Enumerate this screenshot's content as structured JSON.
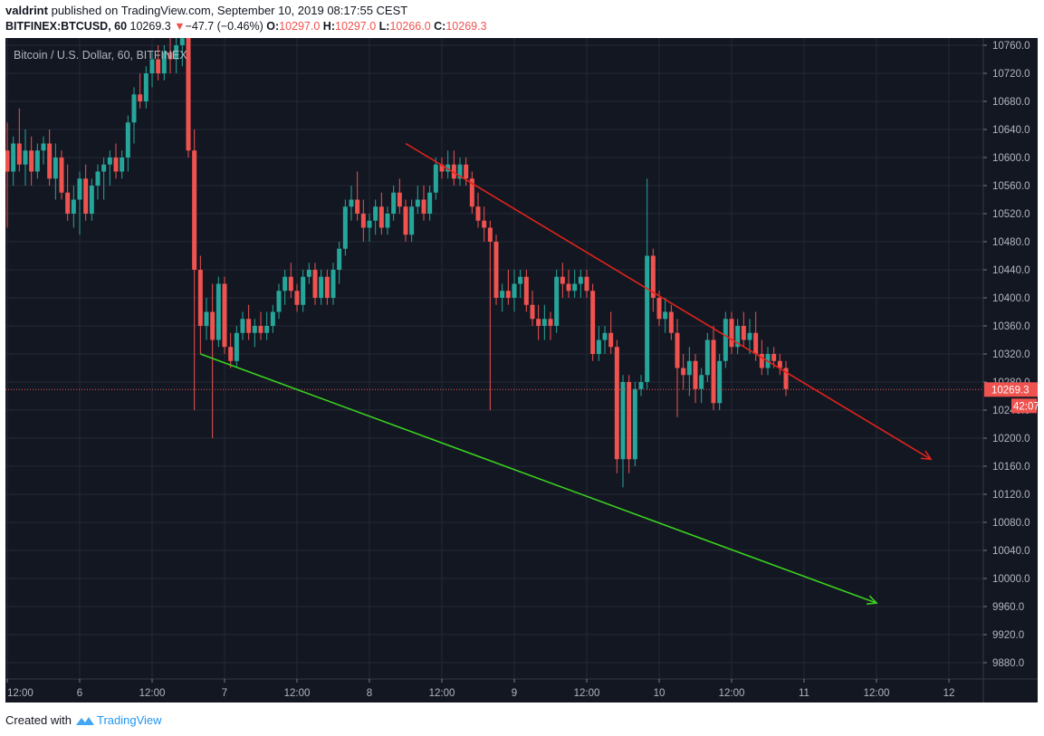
{
  "header": {
    "author": "valdrint",
    "published_text": "published on TradingView.com, September 10, 2019 08:17:55 CEST",
    "symbol": "BITFINEX:BTCUSD, 60",
    "last": "10269.3",
    "change_arrow": "▼",
    "change": "−47.7 (−0.46%)",
    "o_label": "O:",
    "o": "10297.0",
    "h_label": "H:",
    "h": "10297.0",
    "l_label": "L:",
    "l": "10266.0",
    "c_label": "C:",
    "c": "10269.3"
  },
  "footer": {
    "created_with": "Created with",
    "brand": "TradingView"
  },
  "colors": {
    "bg": "#131722",
    "up": "#26a69a",
    "down": "#ef5350",
    "grid": "#242835",
    "red_line": "#e0231c",
    "green_line": "#3ad11f",
    "text": "#b2b5be"
  },
  "chart_data": {
    "type": "candlestick",
    "title": "Bitcoin / U.S. Dollar, 60, BITFINEX",
    "xlabel": "",
    "ylabel": "",
    "ylim": [
      9840,
      10780
    ],
    "y_ticks": [
      "10760.0",
      "10720.0",
      "10680.0",
      "10640.0",
      "10600.0",
      "10560.0",
      "10520.0",
      "10480.0",
      "10440.0",
      "10400.0",
      "10360.0",
      "10320.0",
      "10280.0",
      "10240.0",
      "10200.0",
      "10160.0",
      "10120.0",
      "10080.0",
      "10040.0",
      "10000.0",
      "9960.0",
      "9920.0",
      "9880.0"
    ],
    "x_ticks": [
      "12:00",
      "6",
      "12:00",
      "7",
      "12:00",
      "8",
      "12:00",
      "9",
      "12:00",
      "10",
      "12:00",
      "11",
      "12:00",
      "12"
    ],
    "grid": true,
    "last_price_label": "10269.3",
    "countdown_label": "42:07",
    "last_price": 10269.3,
    "candles_start": "2019-09-05 12:00",
    "interval": "1h",
    "candles": [
      [
        10610,
        10650,
        10500,
        10580
      ],
      [
        10580,
        10630,
        10560,
        10620
      ],
      [
        10620,
        10670,
        10580,
        10590
      ],
      [
        10590,
        10640,
        10560,
        10610
      ],
      [
        10610,
        10630,
        10560,
        10580
      ],
      [
        10580,
        10620,
        10570,
        10610
      ],
      [
        10610,
        10630,
        10590,
        10620
      ],
      [
        10620,
        10640,
        10560,
        10570
      ],
      [
        10570,
        10620,
        10540,
        10600
      ],
      [
        10600,
        10610,
        10540,
        10550
      ],
      [
        10550,
        10590,
        10510,
        10520
      ],
      [
        10520,
        10560,
        10500,
        10540
      ],
      [
        10540,
        10580,
        10490,
        10570
      ],
      [
        10570,
        10590,
        10510,
        10520
      ],
      [
        10520,
        10570,
        10510,
        10560
      ],
      [
        10560,
        10590,
        10540,
        10580
      ],
      [
        10580,
        10600,
        10540,
        10590
      ],
      [
        10590,
        10610,
        10560,
        10600
      ],
      [
        10600,
        10620,
        10570,
        10580
      ],
      [
        10580,
        10610,
        10570,
        10600
      ],
      [
        10600,
        10660,
        10580,
        10650
      ],
      [
        10650,
        10700,
        10620,
        10690
      ],
      [
        10690,
        10720,
        10670,
        10680
      ],
      [
        10680,
        10730,
        10670,
        10720
      ],
      [
        10720,
        10750,
        10700,
        10740
      ],
      [
        10740,
        10760,
        10710,
        10720
      ],
      [
        10720,
        10760,
        10710,
        10750
      ],
      [
        10750,
        10780,
        10720,
        10740
      ],
      [
        10740,
        10780,
        10720,
        10760
      ],
      [
        10760,
        10790,
        10730,
        10770
      ],
      [
        10780,
        10780,
        10600,
        10610
      ],
      [
        10610,
        10640,
        10240,
        10440
      ],
      [
        10440,
        10460,
        10320,
        10360
      ],
      [
        10360,
        10400,
        10340,
        10380
      ],
      [
        10380,
        10420,
        10200,
        10340
      ],
      [
        10340,
        10430,
        10330,
        10420
      ],
      [
        10420,
        10430,
        10320,
        10330
      ],
      [
        10330,
        10350,
        10300,
        10310
      ],
      [
        10310,
        10360,
        10300,
        10350
      ],
      [
        10350,
        10380,
        10340,
        10370
      ],
      [
        10370,
        10390,
        10340,
        10350
      ],
      [
        10350,
        10370,
        10330,
        10360
      ],
      [
        10360,
        10380,
        10340,
        10350
      ],
      [
        10350,
        10380,
        10340,
        10360
      ],
      [
        10360,
        10390,
        10350,
        10380
      ],
      [
        10380,
        10420,
        10370,
        10410
      ],
      [
        10410,
        10440,
        10390,
        10430
      ],
      [
        10430,
        10450,
        10400,
        10410
      ],
      [
        10410,
        10420,
        10380,
        10390
      ],
      [
        10390,
        10440,
        10380,
        10430
      ],
      [
        10430,
        10450,
        10420,
        10440
      ],
      [
        10440,
        10450,
        10390,
        10400
      ],
      [
        10400,
        10440,
        10390,
        10430
      ],
      [
        10430,
        10440,
        10390,
        10400
      ],
      [
        10400,
        10450,
        10390,
        10440
      ],
      [
        10440,
        10480,
        10420,
        10470
      ],
      [
        10470,
        10540,
        10460,
        10530
      ],
      [
        10530,
        10560,
        10510,
        10540
      ],
      [
        10540,
        10580,
        10510,
        10520
      ],
      [
        10520,
        10540,
        10480,
        10500
      ],
      [
        10500,
        10520,
        10480,
        10510
      ],
      [
        10510,
        10540,
        10490,
        10530
      ],
      [
        10530,
        10550,
        10490,
        10500
      ],
      [
        10500,
        10530,
        10490,
        10520
      ],
      [
        10520,
        10560,
        10510,
        10550
      ],
      [
        10550,
        10570,
        10520,
        10530
      ],
      [
        10530,
        10540,
        10480,
        10490
      ],
      [
        10490,
        10540,
        10480,
        10530
      ],
      [
        10530,
        10560,
        10520,
        10540
      ],
      [
        10540,
        10560,
        10510,
        10520
      ],
      [
        10520,
        10560,
        10510,
        10550
      ],
      [
        10550,
        10600,
        10540,
        10590
      ],
      [
        10590,
        10600,
        10570,
        10580
      ],
      [
        10580,
        10610,
        10570,
        10590
      ],
      [
        10590,
        10610,
        10560,
        10570
      ],
      [
        10570,
        10600,
        10560,
        10590
      ],
      [
        10590,
        10600,
        10560,
        10570
      ],
      [
        10570,
        10580,
        10520,
        10530
      ],
      [
        10530,
        10550,
        10500,
        10510
      ],
      [
        10510,
        10530,
        10480,
        10500
      ],
      [
        10500,
        10510,
        10240,
        10480
      ],
      [
        10480,
        10490,
        10390,
        10400
      ],
      [
        10400,
        10420,
        10380,
        10410
      ],
      [
        10410,
        10440,
        10390,
        10400
      ],
      [
        10400,
        10440,
        10380,
        10420
      ],
      [
        10420,
        10440,
        10400,
        10430
      ],
      [
        10430,
        10440,
        10380,
        10390
      ],
      [
        10390,
        10410,
        10360,
        10370
      ],
      [
        10370,
        10390,
        10340,
        10360
      ],
      [
        10360,
        10390,
        10340,
        10370
      ],
      [
        10370,
        10380,
        10340,
        10360
      ],
      [
        10360,
        10440,
        10350,
        10430
      ],
      [
        10430,
        10450,
        10400,
        10420
      ],
      [
        10420,
        10440,
        10400,
        10410
      ],
      [
        10410,
        10440,
        10400,
        10420
      ],
      [
        10420,
        10440,
        10400,
        10430
      ],
      [
        10430,
        10440,
        10400,
        10410
      ],
      [
        10410,
        10420,
        10310,
        10320
      ],
      [
        10320,
        10360,
        10310,
        10340
      ],
      [
        10340,
        10360,
        10320,
        10350
      ],
      [
        10350,
        10380,
        10320,
        10330
      ],
      [
        10330,
        10340,
        10150,
        10170
      ],
      [
        10170,
        10290,
        10130,
        10280
      ],
      [
        10280,
        10290,
        10150,
        10170
      ],
      [
        10170,
        10280,
        10160,
        10270
      ],
      [
        10270,
        10290,
        10260,
        10280
      ],
      [
        10280,
        10570,
        10270,
        10460
      ],
      [
        10460,
        10470,
        10380,
        10400
      ],
      [
        10400,
        10410,
        10360,
        10370
      ],
      [
        10370,
        10400,
        10350,
        10380
      ],
      [
        10380,
        10390,
        10340,
        10350
      ],
      [
        10350,
        10370,
        10230,
        10300
      ],
      [
        10300,
        10320,
        10270,
        10290
      ],
      [
        10290,
        10330,
        10260,
        10310
      ],
      [
        10310,
        10320,
        10250,
        10270
      ],
      [
        10270,
        10300,
        10250,
        10290
      ],
      [
        10290,
        10350,
        10280,
        10340
      ],
      [
        10340,
        10360,
        10240,
        10250
      ],
      [
        10250,
        10320,
        10240,
        10310
      ],
      [
        10310,
        10380,
        10300,
        10370
      ],
      [
        10370,
        10380,
        10320,
        10330
      ],
      [
        10330,
        10370,
        10320,
        10360
      ],
      [
        10360,
        10380,
        10330,
        10340
      ],
      [
        10340,
        10370,
        10320,
        10350
      ],
      [
        10350,
        10380,
        10310,
        10320
      ],
      [
        10320,
        10340,
        10290,
        10300
      ],
      [
        10300,
        10330,
        10290,
        10320
      ],
      [
        10320,
        10330,
        10300,
        10310
      ],
      [
        10310,
        10320,
        10290,
        10300
      ],
      [
        10300,
        10310,
        10260,
        10270
      ]
    ],
    "trendlines": [
      {
        "color": "red",
        "from": [
          "2019-09-08 06:00",
          10620
        ],
        "to": [
          "2019-09-11 21:00",
          10170
        ]
      },
      {
        "color": "green",
        "from": [
          "2019-09-06 20:00",
          10320
        ],
        "to": [
          "2019-09-11 12:00",
          9965
        ]
      }
    ]
  }
}
